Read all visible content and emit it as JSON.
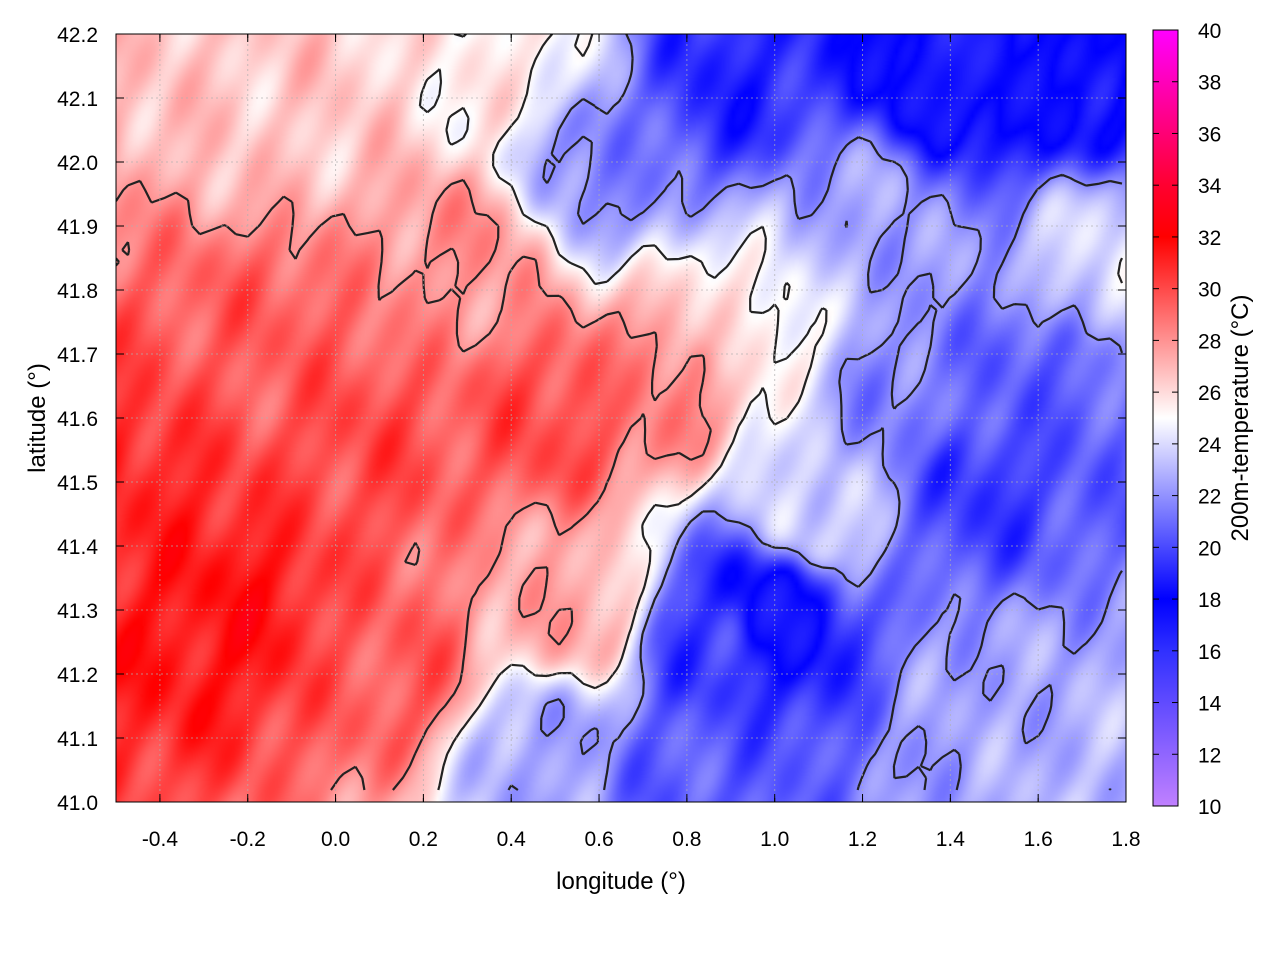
{
  "chart_data": {
    "type": "heatmap",
    "title": "",
    "xlabel": "longitude (°)",
    "ylabel": "latitude (°)",
    "colorbar_label": "200m-temperature (°C)",
    "xlim": [
      -0.5,
      1.8
    ],
    "ylim": [
      41.0,
      42.2
    ],
    "x_ticks": [
      -0.4,
      -0.2,
      0.0,
      0.2,
      0.4,
      0.6,
      0.8,
      1.0,
      1.2,
      1.4,
      1.6,
      1.8
    ],
    "x_tick_labels": [
      "-0.4",
      "-0.2",
      "0.0",
      "0.2",
      "0.4",
      "0.6",
      "0.8",
      "1.0",
      "1.2",
      "1.4",
      "1.6",
      "1.8"
    ],
    "y_ticks": [
      41.0,
      41.1,
      41.2,
      41.3,
      41.4,
      41.5,
      41.6,
      41.7,
      41.8,
      41.9,
      42.0,
      42.1,
      42.2
    ],
    "y_tick_labels": [
      "41.0",
      "41.1",
      "41.2",
      "41.3",
      "41.4",
      "41.5",
      "41.6",
      "41.7",
      "41.8",
      "41.9",
      "42.0",
      "42.1",
      "42.2"
    ],
    "colorbar_range": [
      10,
      40
    ],
    "colorbar_ticks": [
      10,
      12,
      14,
      16,
      18,
      20,
      22,
      24,
      26,
      28,
      30,
      32,
      34,
      36,
      38,
      40
    ],
    "colorbar_tick_labels": [
      "10",
      "12",
      "14",
      "16",
      "18",
      "20",
      "22",
      "24",
      "26",
      "28",
      "30",
      "32",
      "34",
      "36",
      "38",
      "40"
    ],
    "colormap": [
      {
        "value": 10,
        "color": "#c080ff"
      },
      {
        "value": 16,
        "color": "#3030ff"
      },
      {
        "value": 18,
        "color": "#0000ff"
      },
      {
        "value": 25,
        "color": "#ffffff"
      },
      {
        "value": 32,
        "color": "#ff0000"
      },
      {
        "value": 34,
        "color": "#ff0030"
      },
      {
        "value": 40,
        "color": "#ff00ff"
      }
    ],
    "grid": true,
    "contours": true,
    "field_sources": [
      {
        "lon": -0.25,
        "lat": 41.3,
        "temp": 31.5
      },
      {
        "lon": 0.05,
        "lat": 41.55,
        "temp": 30.0
      },
      {
        "lon": -0.15,
        "lat": 41.7,
        "temp": 29.5
      },
      {
        "lon": 0.5,
        "lat": 41.6,
        "temp": 30.0
      },
      {
        "lon": 0.75,
        "lat": 41.65,
        "temp": 28.5
      },
      {
        "lon": 0.3,
        "lat": 41.85,
        "temp": 28.0
      },
      {
        "lon": -0.45,
        "lat": 41.45,
        "temp": 31.0
      },
      {
        "lon": 0.15,
        "lat": 41.2,
        "temp": 29.5
      },
      {
        "lon": 0.55,
        "lat": 41.3,
        "temp": 27.5
      },
      {
        "lon": -0.1,
        "lat": 42.1,
        "temp": 26.5
      },
      {
        "lon": 0.4,
        "lat": 42.15,
        "temp": 25.5
      },
      {
        "lon": 0.9,
        "lat": 42.12,
        "temp": 19.0
      },
      {
        "lon": 1.4,
        "lat": 42.15,
        "temp": 17.0
      },
      {
        "lon": 1.7,
        "lat": 42.12,
        "temp": 18.0
      },
      {
        "lon": 1.0,
        "lat": 41.3,
        "temp": 17.5
      },
      {
        "lon": 0.85,
        "lat": 41.25,
        "temp": 19.5
      },
      {
        "lon": 1.45,
        "lat": 41.5,
        "temp": 19.5
      },
      {
        "lon": 1.6,
        "lat": 41.65,
        "temp": 20.5
      },
      {
        "lon": 1.3,
        "lat": 41.6,
        "temp": 21.5
      },
      {
        "lon": 1.5,
        "lat": 41.15,
        "temp": 22.5
      },
      {
        "lon": 1.7,
        "lat": 41.05,
        "temp": 23.0
      },
      {
        "lon": 0.45,
        "lat": 41.08,
        "temp": 22.5
      },
      {
        "lon": 1.2,
        "lat": 41.9,
        "temp": 22.5
      },
      {
        "lon": 0.6,
        "lat": 42.0,
        "temp": 21.5
      },
      {
        "lon": 1.75,
        "lat": 41.85,
        "temp": 24.0
      },
      {
        "lon": 0.95,
        "lat": 41.75,
        "temp": 25.5
      },
      {
        "lon": 1.1,
        "lat": 41.45,
        "temp": 24.0
      },
      {
        "lon": 0.8,
        "lat": 41.05,
        "temp": 20.5
      }
    ],
    "contour_levels": [
      22,
      25,
      28
    ]
  }
}
